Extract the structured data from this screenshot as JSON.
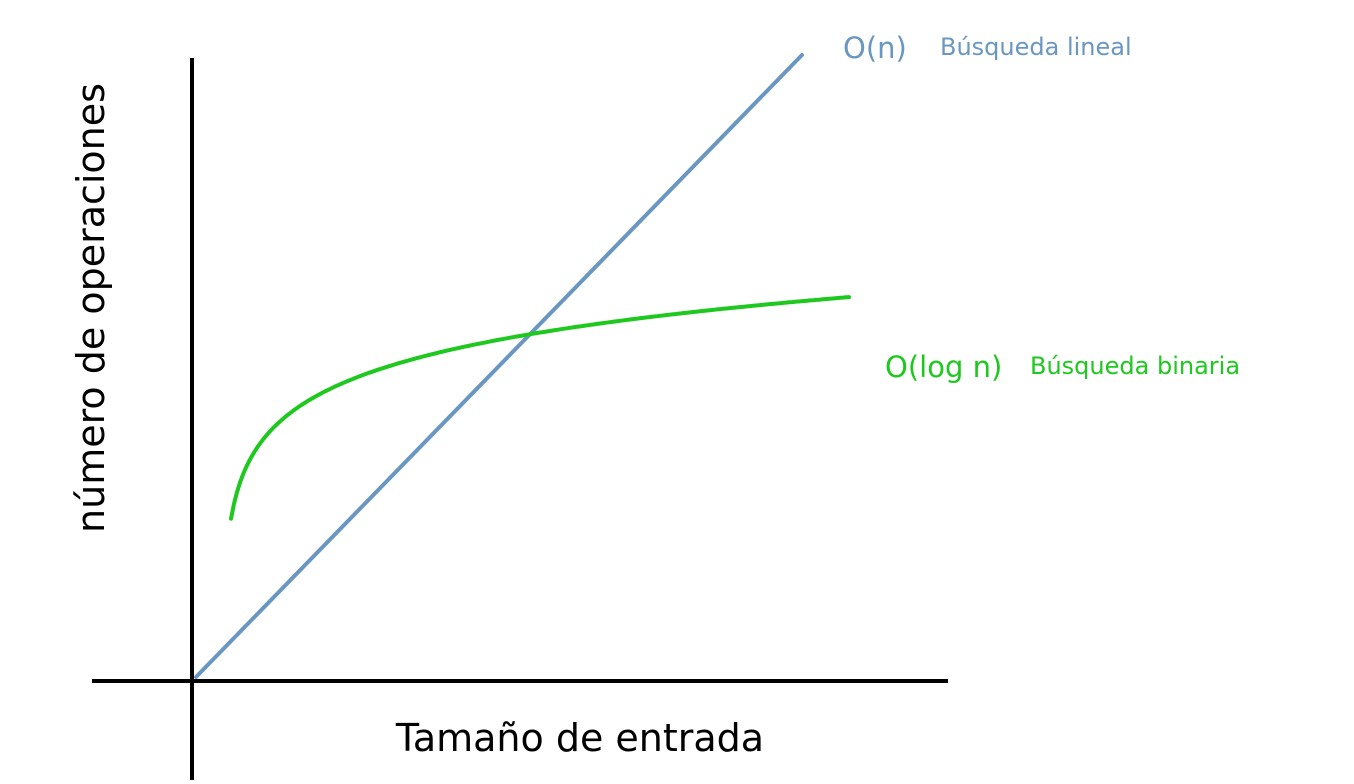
{
  "chart_data": {
    "type": "line",
    "title": "",
    "xlabel": "Tamaño de entrada",
    "ylabel": "número de operaciones",
    "grid": false,
    "legend": "inline labels at line ends",
    "series": [
      {
        "name": "O(n)",
        "description": "Búsqueda lineal",
        "color": "#6a97c2",
        "function": "linear"
      },
      {
        "name": "O(log n)",
        "description": "Búsqueda binaria",
        "color": "#1ec81e",
        "function": "logarithmic"
      }
    ]
  }
}
